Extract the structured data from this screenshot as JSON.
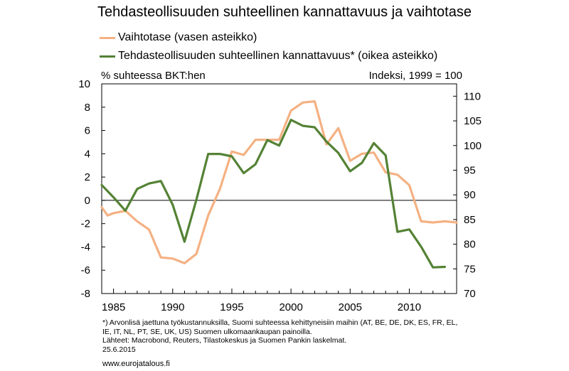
{
  "chart_data": {
    "type": "line",
    "title": "Tehdasteollisuuden suhteellinen kannattavuus ja vaihtotase",
    "left_unit": "% suhteessa BKT:hen",
    "right_unit": "Indeksi, 1999 = 100",
    "x_ticks": [
      "1985",
      "1990",
      "1995",
      "2000",
      "2005",
      "2010"
    ],
    "xlim": [
      1984,
      2014
    ],
    "y_left": {
      "lim": [
        -8,
        10
      ],
      "ticks": [
        "10",
        "8",
        "6",
        "4",
        "2",
        "0",
        "-2",
        "-4",
        "-6",
        "-8"
      ]
    },
    "y_right": {
      "lim": [
        70,
        112.5
      ],
      "ticks": [
        "110",
        "105",
        "100",
        "95",
        "90",
        "85",
        "80",
        "75",
        "70"
      ]
    },
    "series": [
      {
        "name": "Vaihtotase (vasen asteikko)",
        "axis": "left",
        "color": "#F4B183",
        "x": [
          1984,
          1984.5,
          1985,
          1986,
          1987,
          1988,
          1989,
          1990,
          1991,
          1992,
          1993,
          1994,
          1995,
          1996,
          1997,
          1998,
          1999,
          2000,
          2001,
          2002,
          2003,
          2004,
          2005,
          2006,
          2007,
          2008,
          2009,
          2010,
          2011,
          2012,
          2013,
          2014
        ],
        "values": [
          -0.6,
          -1.3,
          -1.1,
          -0.9,
          -1.8,
          -2.5,
          -4.9,
          -5.0,
          -5.4,
          -4.6,
          -1.3,
          1.0,
          4.2,
          3.9,
          5.2,
          5.2,
          5.2,
          7.7,
          8.4,
          8.5,
          4.8,
          6.2,
          3.4,
          4.0,
          4.1,
          2.4,
          2.2,
          1.3,
          -1.8,
          -1.9,
          -1.8,
          -1.9
        ]
      },
      {
        "name": "Tehdasteollisuuden suhteellinen kannattavuus* (oikea asteikko)",
        "axis": "right",
        "color": "#548235",
        "x": [
          1984,
          1985,
          1986,
          1987,
          1988,
          1989,
          1990,
          1991,
          1992,
          1993,
          1994,
          1995,
          1996,
          1997,
          1998,
          1999,
          2000,
          2001,
          2002,
          2003,
          2004,
          2005,
          2006,
          2007,
          2008,
          2009,
          2010,
          2011,
          2012,
          2013
        ],
        "values": [
          92,
          89.5,
          86.8,
          91.2,
          92.3,
          92.8,
          88,
          80.5,
          89,
          98.3,
          98.3,
          97.8,
          94.4,
          96.2,
          101.1,
          100,
          105.2,
          104,
          103.7,
          100.8,
          98.5,
          94.8,
          96.5,
          100.5,
          98,
          82.5,
          83,
          79.5,
          75.3,
          75.4
        ]
      }
    ]
  },
  "legend": [
    {
      "label": "Vaihtotase (vasen asteikko)",
      "color": "#F4B183"
    },
    {
      "label": "Tehdasteollisuuden suhteellinen kannattavuus* (oikea asteikko)",
      "color": "#548235"
    }
  ],
  "footnote": [
    "*) Arvonlisä jaettuna työkustannuksilla, Suomi suhteessa kehittyneisiin maihin (AT, BE, DE, DK, ES, FR, EL,",
    "IE, IT, NL, PT, SE, UK, US) Suomen ulkomaankaupan painoilla.",
    "Lähteet: Macrobond, Reuters, Tilastokeskus ja Suomen Pankin laskelmat.",
    "25.6.2015"
  ],
  "website": "www.eurojatalous.fi"
}
